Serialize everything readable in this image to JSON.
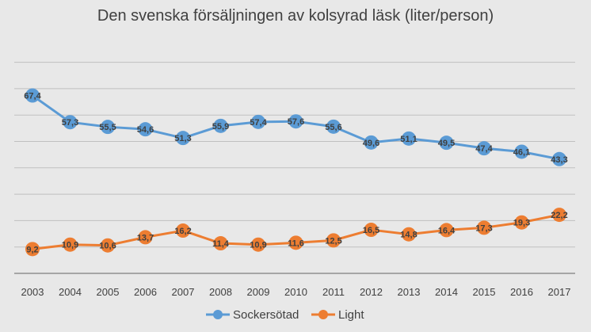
{
  "chart_data": {
    "type": "line",
    "title": "Den svenska försäljningen av kolsyrad läsk (liter/person)",
    "xlabel": "",
    "ylabel": "",
    "categories": [
      "2003",
      "2004",
      "2005",
      "2006",
      "2007",
      "2008",
      "2009",
      "2010",
      "2011",
      "2012",
      "2013",
      "2014",
      "2015",
      "2016",
      "2017"
    ],
    "value_labels": {
      "Sockersötad": [
        "67,4",
        "57,3",
        "55,5",
        "54,6",
        "51,3",
        "55,9",
        "57,4",
        "57,6",
        "55,6",
        "49,6",
        "51,1",
        "49,5",
        "47,4",
        "46,1",
        "43,3"
      ],
      "Light": [
        "9,2",
        "10,9",
        "10,6",
        "13,7",
        "16,2",
        "11,4",
        "10,9",
        "11,6",
        "12,5",
        "16,5",
        "14,8",
        "16,4",
        "17,3",
        "19,3",
        "22,2"
      ]
    },
    "series": [
      {
        "name": "Sockersötad",
        "color": "#5b9bd5",
        "values": [
          67.4,
          57.3,
          55.5,
          54.6,
          51.3,
          55.9,
          57.4,
          57.6,
          55.6,
          49.6,
          51.1,
          49.5,
          47.4,
          46.1,
          43.3
        ]
      },
      {
        "name": "Light",
        "color": "#ed7d31",
        "values": [
          9.2,
          10.9,
          10.6,
          13.7,
          16.2,
          11.4,
          10.9,
          11.6,
          12.5,
          16.5,
          14.8,
          16.4,
          17.3,
          19.3,
          22.2
        ]
      }
    ],
    "ylim": [
      0,
      80
    ],
    "y_gridlines": [
      10,
      20,
      30,
      40,
      50,
      60,
      70,
      80
    ],
    "y_tick_labels_visible": false,
    "grid": true,
    "legend_position": "bottom"
  }
}
